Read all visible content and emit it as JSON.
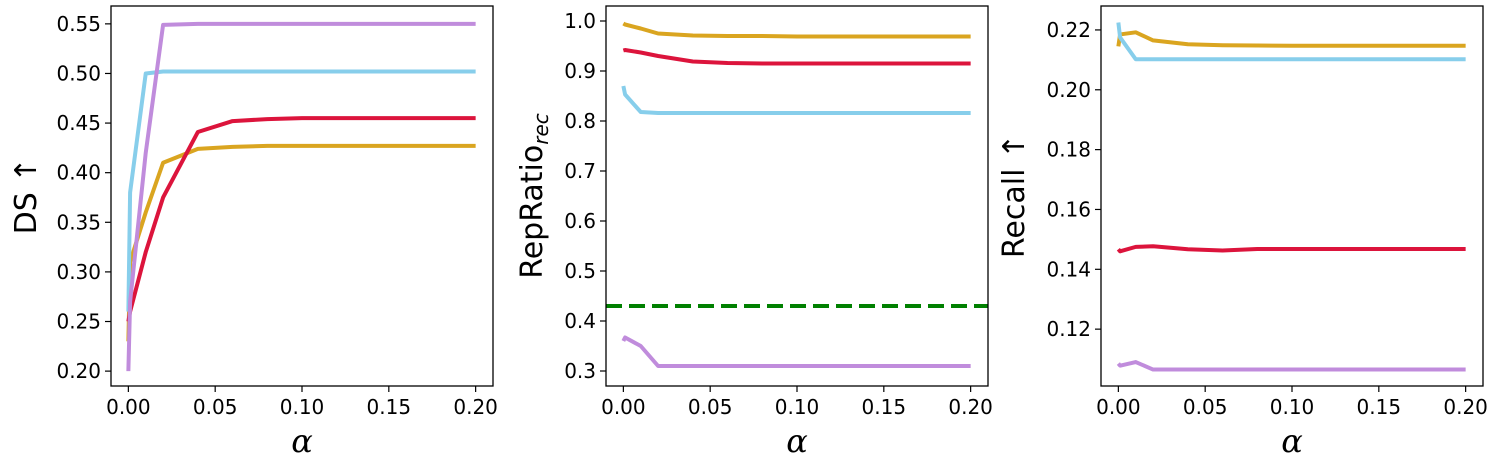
{
  "chart_data": [
    {
      "type": "line",
      "xlabel": "α",
      "ylabel": "DS ↑",
      "xlim": [
        -0.01,
        0.21
      ],
      "ylim": [
        0.185,
        0.568
      ],
      "xticks": [
        "0.00",
        "0.05",
        "0.10",
        "0.15",
        "0.20"
      ],
      "yticks": [
        "0.20",
        "0.25",
        "0.30",
        "0.35",
        "0.40",
        "0.45",
        "0.50",
        "0.55"
      ],
      "grid": false,
      "series": [
        {
          "color": "#daa520",
          "x": [
            0,
            0.001,
            0.01,
            0.02,
            0.04,
            0.06,
            0.08,
            0.1,
            0.2
          ],
          "y": [
            0.23,
            0.31,
            0.36,
            0.41,
            0.424,
            0.426,
            0.427,
            0.427,
            0.427
          ]
        },
        {
          "color": "#dc143c",
          "x": [
            0,
            0.001,
            0.01,
            0.02,
            0.04,
            0.06,
            0.08,
            0.1,
            0.2
          ],
          "y": [
            0.25,
            0.26,
            0.32,
            0.375,
            0.441,
            0.452,
            0.454,
            0.455,
            0.455
          ]
        },
        {
          "color": "#87ceeb",
          "x": [
            0,
            0.001,
            0.01,
            0.02,
            0.04,
            0.06,
            0.08,
            0.1,
            0.2
          ],
          "y": [
            0.26,
            0.38,
            0.5,
            0.502,
            0.502,
            0.502,
            0.502,
            0.502,
            0.502
          ]
        },
        {
          "color": "#c08cdc",
          "x": [
            0,
            0.001,
            0.01,
            0.02,
            0.04,
            0.06,
            0.08,
            0.1,
            0.2
          ],
          "y": [
            0.2,
            0.27,
            0.42,
            0.549,
            0.55,
            0.55,
            0.55,
            0.55,
            0.55
          ]
        }
      ]
    },
    {
      "type": "line",
      "xlabel": "α",
      "ylabel": "RepRatio",
      "ylabel_sub": "rec",
      "xlim": [
        -0.01,
        0.21
      ],
      "ylim": [
        0.27,
        1.03
      ],
      "xticks": [
        "0.00",
        "0.05",
        "0.10",
        "0.15",
        "0.20"
      ],
      "yticks": [
        "0.3",
        "0.4",
        "0.5",
        "0.6",
        "0.7",
        "0.8",
        "0.9",
        "1.0"
      ],
      "grid": false,
      "reference_line": {
        "y": 0.43,
        "color": "#008000",
        "style": "dashed"
      },
      "series": [
        {
          "color": "#daa520",
          "x": [
            0,
            0.001,
            0.01,
            0.02,
            0.04,
            0.06,
            0.08,
            0.1,
            0.2
          ],
          "y": [
            0.995,
            0.993,
            0.985,
            0.975,
            0.971,
            0.97,
            0.97,
            0.969,
            0.969
          ]
        },
        {
          "color": "#dc143c",
          "x": [
            0,
            0.001,
            0.01,
            0.02,
            0.04,
            0.06,
            0.08,
            0.1,
            0.2
          ],
          "y": [
            0.941,
            0.942,
            0.937,
            0.93,
            0.919,
            0.916,
            0.915,
            0.915,
            0.915
          ]
        },
        {
          "color": "#87ceeb",
          "x": [
            0,
            0.001,
            0.01,
            0.02,
            0.04,
            0.06,
            0.08,
            0.1,
            0.2
          ],
          "y": [
            0.87,
            0.853,
            0.818,
            0.816,
            0.816,
            0.816,
            0.816,
            0.816,
            0.816
          ]
        },
        {
          "color": "#c08cdc",
          "x": [
            0,
            0.001,
            0.01,
            0.02,
            0.04,
            0.06,
            0.08,
            0.1,
            0.2
          ],
          "y": [
            0.36,
            0.367,
            0.35,
            0.31,
            0.31,
            0.31,
            0.31,
            0.31,
            0.31
          ]
        }
      ]
    },
    {
      "type": "line",
      "xlabel": "α",
      "ylabel": "Recall ↑",
      "xlim": [
        -0.01,
        0.21
      ],
      "ylim": [
        0.101,
        0.228
      ],
      "xticks": [
        "0.00",
        "0.05",
        "0.10",
        "0.15",
        "0.20"
      ],
      "yticks": [
        "0.12",
        "0.14",
        "0.16",
        "0.18",
        "0.20",
        "0.22"
      ],
      "grid": false,
      "series": [
        {
          "color": "#daa520",
          "x": [
            0,
            0.001,
            0.01,
            0.02,
            0.04,
            0.06,
            0.08,
            0.1,
            0.2
          ],
          "y": [
            0.2145,
            0.2185,
            0.2192,
            0.2165,
            0.2152,
            0.2149,
            0.2148,
            0.2147,
            0.2147
          ]
        },
        {
          "color": "#dc143c",
          "x": [
            0,
            0.001,
            0.01,
            0.02,
            0.04,
            0.06,
            0.08,
            0.1,
            0.2
          ],
          "y": [
            0.1467,
            0.146,
            0.1475,
            0.1477,
            0.1467,
            0.1463,
            0.1468,
            0.1468,
            0.1468
          ]
        },
        {
          "color": "#87ceeb",
          "x": [
            0,
            0.001,
            0.01,
            0.02,
            0.04,
            0.06,
            0.08,
            0.1,
            0.2
          ],
          "y": [
            0.2225,
            0.2175,
            0.2102,
            0.2102,
            0.2102,
            0.2102,
            0.2102,
            0.2102,
            0.2102
          ]
        },
        {
          "color": "#c08cdc",
          "x": [
            0,
            0.001,
            0.01,
            0.02,
            0.04,
            0.06,
            0.08,
            0.1,
            0.2
          ],
          "y": [
            0.1085,
            0.1078,
            0.109,
            0.1065,
            0.1065,
            0.1065,
            0.1065,
            0.1065,
            0.1065
          ]
        }
      ]
    }
  ]
}
